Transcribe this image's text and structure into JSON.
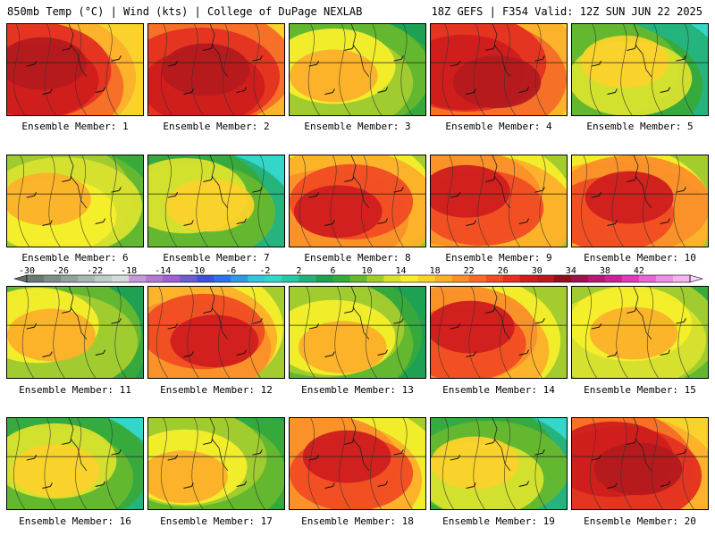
{
  "header": {
    "left_title": "850mb Temp (°C) | Wind (kts) | College of DuPage NEXLAB",
    "right_title": "18Z GEFS | F354 Valid: 12Z SUN JUN 22 2025"
  },
  "members": [
    {
      "label": "Ensemble Member: 1",
      "theme": "hot"
    },
    {
      "label": "Ensemble Member: 2",
      "theme": "hot"
    },
    {
      "label": "Ensemble Member: 3",
      "theme": "cool"
    },
    {
      "label": "Ensemble Member: 4",
      "theme": "hot"
    },
    {
      "label": "Ensemble Member: 5",
      "theme": "cold"
    },
    {
      "label": "Ensemble Member: 6",
      "theme": "mild"
    },
    {
      "label": "Ensemble Member: 7",
      "theme": "cold"
    },
    {
      "label": "Ensemble Member: 8",
      "theme": "warm"
    },
    {
      "label": "Ensemble Member: 9",
      "theme": "warm"
    },
    {
      "label": "Ensemble Member: 10",
      "theme": "warm"
    },
    {
      "label": "Ensemble Member: 11",
      "theme": "cool"
    },
    {
      "label": "Ensemble Member: 12",
      "theme": "warm"
    },
    {
      "label": "Ensemble Member: 13",
      "theme": "cool"
    },
    {
      "label": "Ensemble Member: 14",
      "theme": "warm"
    },
    {
      "label": "Ensemble Member: 15",
      "theme": "mild"
    },
    {
      "label": "Ensemble Member: 16",
      "theme": "cold"
    },
    {
      "label": "Ensemble Member: 17",
      "theme": "cool"
    },
    {
      "label": "Ensemble Member: 18",
      "theme": "warm"
    },
    {
      "label": "Ensemble Member: 19",
      "theme": "cold"
    },
    {
      "label": "Ensemble Member: 20",
      "theme": "hot"
    }
  ],
  "colorbar": {
    "tick_labels": [
      "-30",
      "-26",
      "-22",
      "-18",
      "-14",
      "-10",
      "-6",
      "-2",
      "2",
      "6",
      "10",
      "14",
      "18",
      "22",
      "26",
      "30",
      "34",
      "38",
      "42"
    ],
    "colors": [
      "#6a7a72",
      "#7f8e86",
      "#94a39c",
      "#a9b7b1",
      "#bfccc7",
      "#d3dcd9",
      "#c49bd8",
      "#b27ad6",
      "#a15fd4",
      "#6e5cd0",
      "#3d52d8",
      "#2a74e8",
      "#2f9be6",
      "#35c3e0",
      "#34d6c9",
      "#2bc6a3",
      "#25b27a",
      "#1ea153",
      "#38aa3b",
      "#66b82f",
      "#a4cc2f",
      "#d8e22e",
      "#f6ee2b",
      "#fbd22b",
      "#fcb02a",
      "#fb8f29",
      "#f76d27",
      "#f14d23",
      "#e43020",
      "#cf1d1d",
      "#b51a1e",
      "#8f1018",
      "#9c1449",
      "#b51a72",
      "#c92496",
      "#e03bbd",
      "#ea66d6",
      "#f08fe4",
      "#f4b5ee"
    ]
  }
}
